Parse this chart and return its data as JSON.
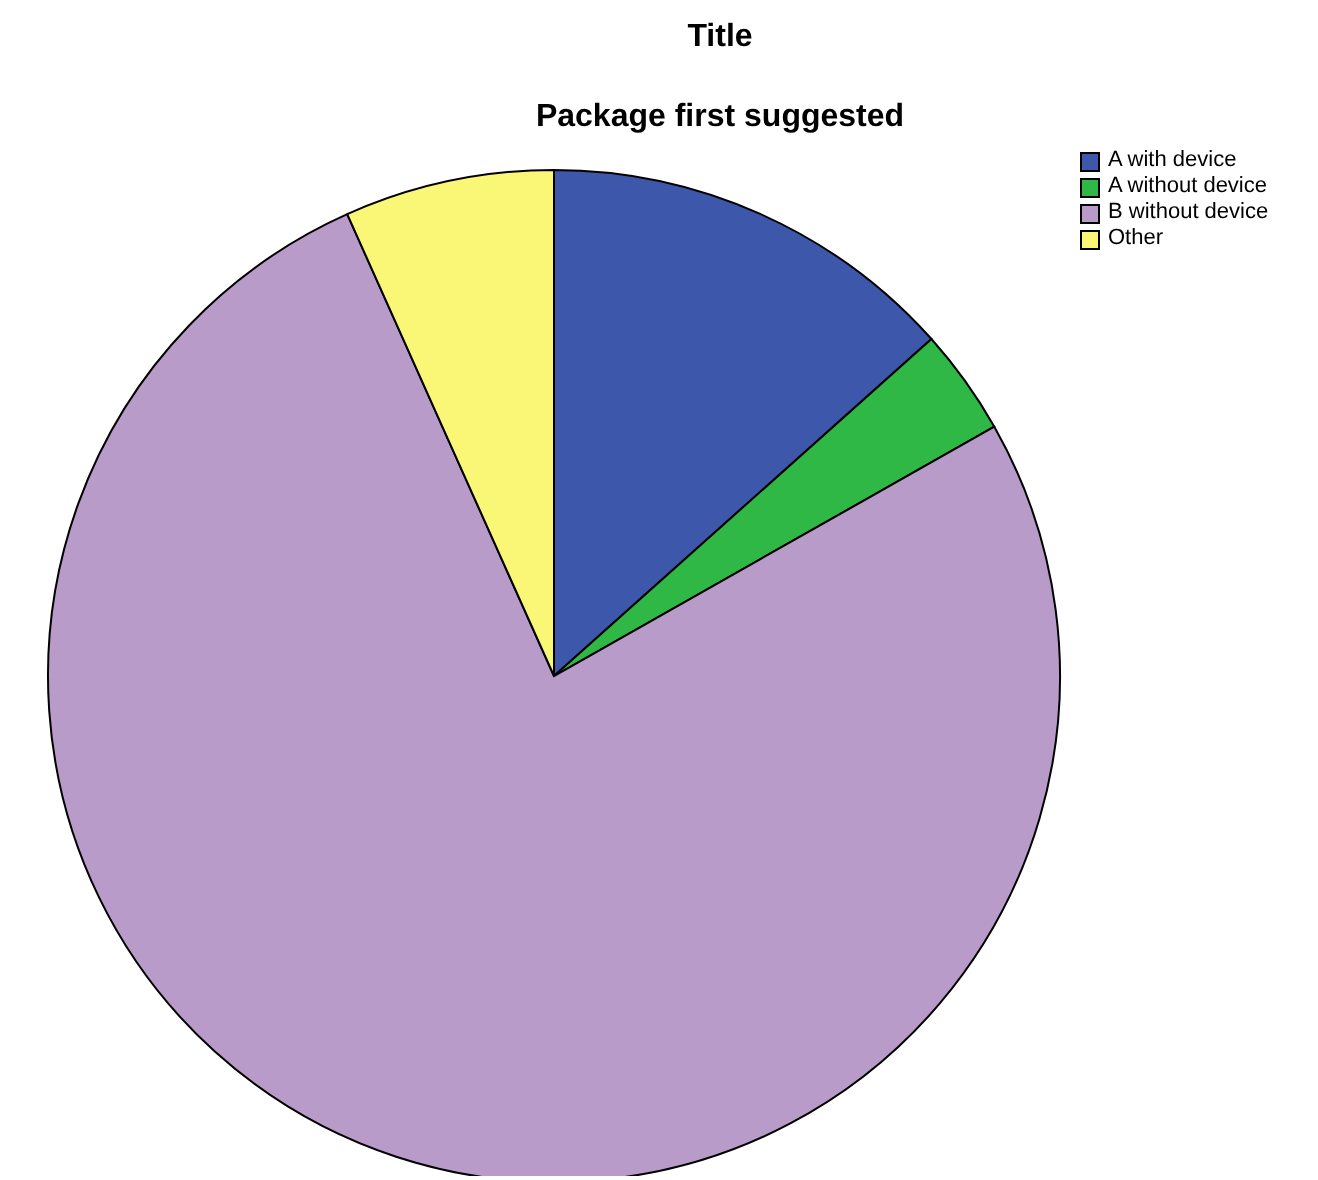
{
  "chart_data": {
    "type": "pie",
    "title": "Title",
    "subtitle": "Package first suggested",
    "categories": [
      "A with device",
      "A without device",
      "B without device",
      "Other"
    ],
    "values": [
      13.4,
      3.4,
      76.5,
      6.7
    ],
    "colors": [
      "#3d58aa",
      "#2fb846",
      "#b89bc8",
      "#fbf776"
    ],
    "legend": "top right"
  }
}
